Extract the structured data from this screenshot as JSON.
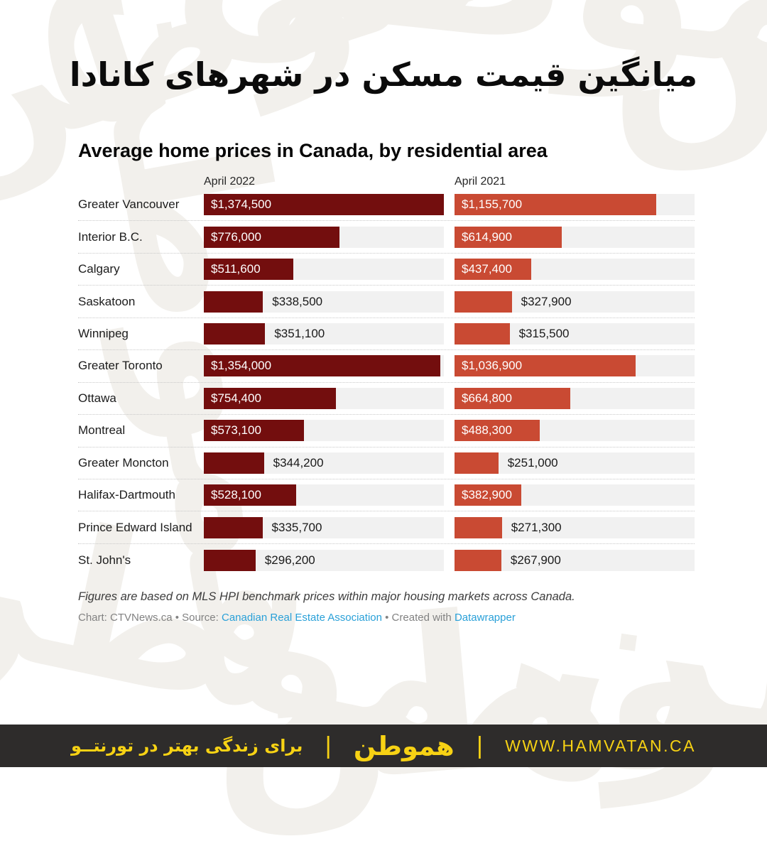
{
  "page": {
    "persian_title": "میانگین قیمت مسکن در شهرهای کانادا",
    "watermark_text": "هموطن"
  },
  "chart": {
    "title": "Average home prices in Canada, by residential area",
    "col_headers": [
      "April 2022",
      "April 2021"
    ],
    "footnote": "Figures are based on MLS HPI benchmark prices within major housing markets across Canada.",
    "credit": {
      "part1": "Chart: CTVNews.ca • Source: ",
      "source_link": "Canadian Real Estate Association",
      "part2": " • Created with ",
      "tool_link": "Datawrapper"
    },
    "colors": {
      "bar_2022": "#730e0e",
      "bar_2021": "#c94a33",
      "track": "#f1f1f1",
      "link": "#29a0d8"
    }
  },
  "chart_data": {
    "type": "bar",
    "orientation": "horizontal",
    "title": "Average home prices in Canada, by residential area",
    "categories": [
      "Greater Vancouver",
      "Interior B.C.",
      "Calgary",
      "Saskatoon",
      "Winnipeg",
      "Greater Toronto",
      "Ottawa",
      "Montreal",
      "Greater Moncton",
      "Halifax-Dartmouth",
      "Prince Edward Island",
      "St. John's"
    ],
    "series": [
      {
        "name": "April 2022",
        "color": "#730e0e",
        "values": [
          1374500,
          776000,
          511600,
          338500,
          351100,
          1354000,
          754400,
          573100,
          344200,
          528100,
          335700,
          296200
        ]
      },
      {
        "name": "April 2021",
        "color": "#c94a33",
        "values": [
          1155700,
          614900,
          437400,
          327900,
          315500,
          1036900,
          664800,
          488300,
          251000,
          382900,
          271300,
          267900
        ]
      }
    ],
    "max_value": 1374500,
    "value_prefix": "$",
    "grid": false,
    "legend_position": "column-headers"
  },
  "footer": {
    "tagline_fa": "برای زندگی بهتر در تورنتــو",
    "divider": "|",
    "logo": "هموطن",
    "url": "WWW.HAMVATAN.CA",
    "colors": {
      "bg": "#2e2c2b",
      "accent": "#f7d214"
    }
  }
}
